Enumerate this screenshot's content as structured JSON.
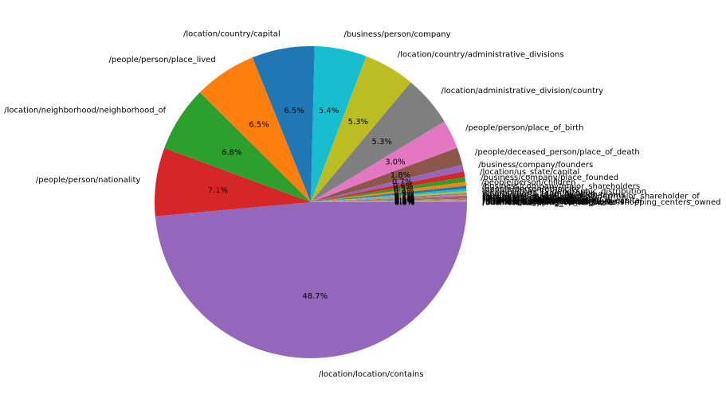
{
  "chart_data": {
    "type": "pie",
    "title": "",
    "start_angle": "clockwise from 3 o'clock",
    "slices": [
      {
        "label": "/location/location/contains",
        "value": 48.7,
        "pct_label": "48.7%",
        "color": "#9467bd"
      },
      {
        "label": "/people/person/nationality",
        "value": 7.1,
        "pct_label": "7.1%",
        "color": "#d62728"
      },
      {
        "label": "/location/neighborhood/neighborhood_of",
        "value": 6.8,
        "pct_label": "6.8%",
        "color": "#2ca02c"
      },
      {
        "label": "/people/person/place_lived",
        "value": 6.5,
        "pct_label": "6.5%",
        "color": "#ff7f0e"
      },
      {
        "label": "/location/country/capital",
        "value": 6.5,
        "pct_label": "6.5%",
        "color": "#1f77b4"
      },
      {
        "label": "/business/person/company",
        "value": 5.4,
        "pct_label": "5.4%",
        "color": "#17becf"
      },
      {
        "label": "/location/country/administrative_divisions",
        "value": 5.3,
        "pct_label": "5.3%",
        "color": "#bcbd22"
      },
      {
        "label": "/location/administrative_division/country",
        "value": 5.3,
        "pct_label": "5.3%",
        "color": "#7f7f7f"
      },
      {
        "label": "/people/person/place_of_birth",
        "value": 3.0,
        "pct_label": "3.0%",
        "color": "#e377c2"
      },
      {
        "label": "/people/deceased_person/place_of_death",
        "value": 1.8,
        "pct_label": "1.8%",
        "color": "#8c564b"
      },
      {
        "label": "/business/company/founders",
        "value": 0.7,
        "pct_label": "0.7%",
        "color": "#9467bd"
      },
      {
        "label": "/location/us_state/capital",
        "value": 0.6,
        "pct_label": "0.6%",
        "color": "#d62728"
      },
      {
        "label": "/business/company/place_founded",
        "value": 0.5,
        "pct_label": "0.5%",
        "color": "#2ca02c"
      },
      {
        "label": "/people/person/children",
        "value": 0.4,
        "pct_label": "0.4%",
        "color": "#ff7f0e"
      },
      {
        "label": "/business/company/major_shareholders",
        "value": 0.3,
        "pct_label": "0.3%",
        "color": "#1f77b4"
      },
      {
        "label": "/people/person/ethnicity",
        "value": 0.25,
        "pct_label": "0.2%",
        "color": "#17becf"
      },
      {
        "label": "/people/ethnicity/geographic_distribution",
        "value": 0.2,
        "pct_label": "0.2%",
        "color": "#bcbd22"
      },
      {
        "label": "/sports/sports_team/location",
        "value": 0.15,
        "pct_label": "0.1%",
        "color": "#7f7f7f"
      },
      {
        "label": "/sports/sports_team_location/teams",
        "value": 0.12,
        "pct_label": "0.1%",
        "color": "#e377c2"
      },
      {
        "label": "/business/company_shareholder/major_shareholder_of",
        "value": 0.1,
        "pct_label": "0.1%",
        "color": "#8c564b"
      },
      {
        "label": "/location/br_state/capital",
        "value": 0.08,
        "pct_label": "0.1%",
        "color": "#9467bd"
      },
      {
        "label": "/business/company/advisors",
        "value": 0.07,
        "pct_label": "0.1%",
        "color": "#d62728"
      },
      {
        "label": "/people/person/religion",
        "value": 0.06,
        "pct_label": "0.1%",
        "color": "#2ca02c"
      },
      {
        "label": "/location/it_region/capital",
        "value": 0.05,
        "pct_label": "0.0%",
        "color": "#ff7f0e"
      },
      {
        "label": "/location/cn_province/capital",
        "value": 0.05,
        "pct_label": "0.0%",
        "color": "#1f77b4"
      },
      {
        "label": "/people/person/profession",
        "value": 0.04,
        "pct_label": "0.0%",
        "color": "#17becf"
      },
      {
        "label": "/location/in_state/administrative_capital",
        "value": 0.04,
        "pct_label": "0.0%",
        "color": "#bcbd22"
      },
      {
        "label": "/location/jp_prefecture/capital",
        "value": 0.03,
        "pct_label": "0.0%",
        "color": "#7f7f7f"
      },
      {
        "label": "/film/film_location/featured_in_films",
        "value": 0.03,
        "pct_label": "0.0%",
        "color": "#e377c2"
      },
      {
        "label": "/business/company/industry",
        "value": 0.03,
        "pct_label": "0.0%",
        "color": "#8c564b"
      },
      {
        "label": "/location/mx_state/capital",
        "value": 0.02,
        "pct_label": "0.0%",
        "color": "#9467bd"
      },
      {
        "label": "/film/film/featured_film_locations",
        "value": 0.02,
        "pct_label": "0.0%",
        "color": "#d62728"
      },
      {
        "label": "/business/shopping_center_owner/shopping_centers_owned",
        "value": 0.02,
        "pct_label": "0.0%",
        "color": "#2ca02c"
      },
      {
        "label": "/business/shopping_center/owner",
        "value": 0.02,
        "pct_label": "0.0%",
        "color": "#ff7f0e"
      }
    ]
  }
}
